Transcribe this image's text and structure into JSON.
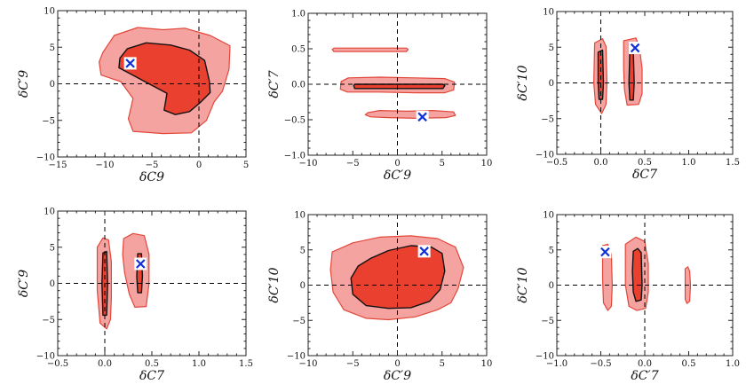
{
  "chart_data": [
    {
      "type": "contour",
      "xlabel": "δC9",
      "ylabel": "δC′9",
      "xlim": [
        -15,
        5
      ],
      "ylim": [
        -10,
        10
      ],
      "xticks": [
        "−15",
        "−10",
        "−5",
        "0",
        "5"
      ],
      "yticks": [
        "−10",
        "−5",
        "0",
        "5",
        "10"
      ],
      "best_fit": [
        -7.3,
        2.8
      ],
      "outer_region": [
        [
          -10.2,
          4.3
        ],
        [
          -9,
          6.6
        ],
        [
          -6.5,
          7.7
        ],
        [
          -3.8,
          7.4
        ],
        [
          -1.5,
          7.6
        ],
        [
          1.2,
          6.6
        ],
        [
          3.3,
          5.2
        ],
        [
          3.2,
          2
        ],
        [
          2.5,
          -1
        ],
        [
          1.6,
          -2.5
        ],
        [
          0.8,
          -5
        ],
        [
          -0.8,
          -6.7
        ],
        [
          -3.8,
          -6.8
        ],
        [
          -7,
          -6.5
        ],
        [
          -7.5,
          -4.8
        ],
        [
          -7,
          -2
        ],
        [
          -8.3,
          0.3
        ],
        [
          -10.4,
          1.2
        ],
        [
          -10.6,
          3
        ]
      ],
      "inner_region": [
        [
          -8.4,
          3.5
        ],
        [
          -7.6,
          4.8
        ],
        [
          -5.6,
          5.6
        ],
        [
          -3,
          5.3
        ],
        [
          -1,
          4.6
        ],
        [
          0.6,
          3.2
        ],
        [
          1.1,
          0.4
        ],
        [
          1.2,
          -1.2
        ],
        [
          0.1,
          -2.6
        ],
        [
          -1,
          -3.8
        ],
        [
          -2.5,
          -4.2
        ],
        [
          -3.7,
          -3.6
        ],
        [
          -3.4,
          -1.3
        ],
        [
          -5.3,
          0
        ],
        [
          -7.2,
          1.3
        ],
        [
          -8.5,
          2.2
        ]
      ]
    },
    {
      "type": "contour",
      "xlabel": "δC′9",
      "ylabel": "δC′7",
      "xlim": [
        -10,
        10
      ],
      "ylim": [
        -1,
        1
      ],
      "xticks": [
        "−10",
        "−5",
        "0",
        "5",
        "10"
      ],
      "yticks": [
        "−1.0",
        "−0.5",
        "0.0",
        "0.5",
        "1.0"
      ],
      "best_fit": [
        2.8,
        -0.46
      ],
      "outer_regions": [
        [
          [
            -7.3,
            0.49
          ],
          [
            -7.1,
            0.51
          ],
          [
            1,
            0.51
          ],
          [
            1.2,
            0.49
          ],
          [
            1,
            0.46
          ],
          [
            -7.1,
            0.46
          ]
        ],
        [
          [
            -6.3,
            0.04
          ],
          [
            -5.5,
            0.09
          ],
          [
            -2,
            0.1
          ],
          [
            2,
            0.09
          ],
          [
            5.3,
            0.08
          ],
          [
            6.4,
            0.03
          ],
          [
            6.3,
            -0.08
          ],
          [
            5.3,
            -0.12
          ],
          [
            2,
            -0.12
          ],
          [
            -2,
            -0.11
          ],
          [
            -5.6,
            -0.11
          ],
          [
            -6.4,
            -0.07
          ]
        ],
        [
          [
            -3.3,
            -0.4
          ],
          [
            -2,
            -0.37
          ],
          [
            1,
            -0.38
          ],
          [
            4,
            -0.37
          ],
          [
            6.3,
            -0.39
          ],
          [
            6.5,
            -0.44
          ],
          [
            5.5,
            -0.47
          ],
          [
            2,
            -0.48
          ],
          [
            -1,
            -0.47
          ],
          [
            -3,
            -0.46
          ],
          [
            -3.6,
            -0.43
          ]
        ]
      ],
      "inner_region": [
        [
          -4.9,
          -0.02
        ],
        [
          -4.8,
          0
        ],
        [
          5.1,
          0
        ],
        [
          5.3,
          -0.02
        ],
        [
          5.1,
          -0.06
        ],
        [
          -4.8,
          -0.06
        ]
      ]
    },
    {
      "type": "contour",
      "xlabel": "δC7",
      "ylabel": "δC′10",
      "xlim": [
        -0.5,
        1.5
      ],
      "ylim": [
        -10,
        10
      ],
      "xticks": [
        "−0.5",
        "0.0",
        "0.5",
        "1.0",
        "1.5"
      ],
      "yticks": [
        "−10",
        "−5",
        "0",
        "5",
        "10"
      ],
      "best_fit": [
        0.39,
        4.9
      ],
      "outer_regions": [
        [
          [
            -0.07,
            5.6
          ],
          [
            0.02,
            6.2
          ],
          [
            0.06,
            5.1
          ],
          [
            0.07,
            0
          ],
          [
            0.06,
            -3
          ],
          [
            0.01,
            -4.3
          ],
          [
            -0.06,
            -3
          ],
          [
            -0.08,
            0
          ]
        ],
        [
          [
            0.26,
            5.9
          ],
          [
            0.4,
            6.3
          ],
          [
            0.44,
            4.9
          ],
          [
            0.47,
            2
          ],
          [
            0.47,
            -1.5
          ],
          [
            0.43,
            -3
          ],
          [
            0.3,
            -3.1
          ],
          [
            0.27,
            -1
          ],
          [
            0.26,
            2
          ]
        ]
      ],
      "inner_regions": [
        [
          [
            -0.03,
            4.3
          ],
          [
            0.02,
            4.6
          ],
          [
            0.03,
            0
          ],
          [
            0.02,
            -2.3
          ],
          [
            -0.02,
            -2.3
          ],
          [
            -0.03,
            0
          ]
        ],
        [
          [
            0.33,
            4.5
          ],
          [
            0.37,
            4.5
          ],
          [
            0.38,
            0
          ],
          [
            0.37,
            -2.4
          ],
          [
            0.33,
            -2.4
          ],
          [
            0.32,
            0
          ]
        ]
      ]
    },
    {
      "type": "contour",
      "xlabel": "δC7",
      "ylabel": "δC′9",
      "xlim": [
        -0.5,
        1.5
      ],
      "ylim": [
        -10,
        10
      ],
      "xticks": [
        "−0.5",
        "0.0",
        "0.5",
        "1.0",
        "1.5"
      ],
      "yticks": [
        "−10",
        "−5",
        "0",
        "5",
        "10"
      ],
      "best_fit": [
        0.38,
        2.7
      ],
      "outer_regions": [
        [
          [
            -0.08,
            5
          ],
          [
            -0.02,
            6.3
          ],
          [
            0.04,
            6
          ],
          [
            0.07,
            3
          ],
          [
            0.07,
            -2
          ],
          [
            0.06,
            -5
          ],
          [
            0.02,
            -6.3
          ],
          [
            -0.05,
            -5.5
          ],
          [
            -0.08,
            -1
          ]
        ],
        [
          [
            0.2,
            6.2
          ],
          [
            0.3,
            6.9
          ],
          [
            0.42,
            6.6
          ],
          [
            0.47,
            4
          ],
          [
            0.47,
            0
          ],
          [
            0.44,
            -3.2
          ],
          [
            0.32,
            -3.3
          ],
          [
            0.26,
            -1.5
          ],
          [
            0.21,
            1.5
          ],
          [
            0.19,
            4
          ]
        ]
      ],
      "inner_regions": [
        [
          [
            -0.02,
            4.2
          ],
          [
            0.02,
            4.4
          ],
          [
            0.03,
            0
          ],
          [
            0.02,
            -4.4
          ],
          [
            -0.02,
            -4.4
          ],
          [
            -0.03,
            0
          ]
        ],
        [
          [
            0.35,
            4.1
          ],
          [
            0.39,
            4.1
          ],
          [
            0.4,
            1
          ],
          [
            0.39,
            -1.3
          ],
          [
            0.35,
            -1.3
          ],
          [
            0.34,
            1
          ]
        ]
      ]
    },
    {
      "type": "contour",
      "xlabel": "δC′9",
      "ylabel": "δC′10",
      "xlim": [
        -10,
        10
      ],
      "ylim": [
        -10,
        10
      ],
      "xticks": [
        "−10",
        "−5",
        "0",
        "5",
        "10"
      ],
      "yticks": [
        "−10",
        "−5",
        "0",
        "5",
        "10"
      ],
      "best_fit": [
        3,
        4.8
      ],
      "outer_region": [
        [
          -7.3,
          4.7
        ],
        [
          -5,
          6
        ],
        [
          -2,
          6.8
        ],
        [
          1.5,
          7
        ],
        [
          4.5,
          6.6
        ],
        [
          6.5,
          5.4
        ],
        [
          7.4,
          2.5
        ],
        [
          6.8,
          -0.5
        ],
        [
          6,
          -2.5
        ],
        [
          4.5,
          -3.5
        ],
        [
          2,
          -4.5
        ],
        [
          -1,
          -4.9
        ],
        [
          -3.5,
          -4.7
        ],
        [
          -6,
          -3.5
        ],
        [
          -7.2,
          -1
        ],
        [
          -7.5,
          2.2
        ]
      ],
      "inner_region": [
        [
          -4.4,
          2.7
        ],
        [
          -3,
          3.8
        ],
        [
          -1,
          4.9
        ],
        [
          1.5,
          5.6
        ],
        [
          3.8,
          5.4
        ],
        [
          5,
          4.5
        ],
        [
          5.3,
          2
        ],
        [
          4.8,
          -0.6
        ],
        [
          3.6,
          -2.3
        ],
        [
          1.5,
          -3.2
        ],
        [
          -1,
          -3.3
        ],
        [
          -3.5,
          -2.9
        ],
        [
          -5,
          -1.3
        ],
        [
          -5.2,
          1
        ]
      ]
    },
    {
      "type": "contour",
      "xlabel": "δC′7",
      "ylabel": "δC′10",
      "xlim": [
        -1,
        1
      ],
      "ylim": [
        -10,
        10
      ],
      "xticks": [
        "−1.0",
        "−0.5",
        "0.0",
        "0.5",
        "1.0"
      ],
      "yticks": [
        "−10",
        "−5",
        "0",
        "5",
        "10"
      ],
      "best_fit": [
        -0.45,
        4.7
      ],
      "outer_regions": [
        [
          [
            -0.48,
            5.6
          ],
          [
            -0.42,
            5.8
          ],
          [
            -0.38,
            4.4
          ],
          [
            -0.37,
            0
          ],
          [
            -0.38,
            -3
          ],
          [
            -0.42,
            -3.6
          ],
          [
            -0.47,
            -2.5
          ],
          [
            -0.48,
            1
          ]
        ],
        [
          [
            -0.22,
            5.8
          ],
          [
            -0.1,
            6.8
          ],
          [
            0,
            6.2
          ],
          [
            0.04,
            3
          ],
          [
            0.04,
            -1
          ],
          [
            0.01,
            -3.3
          ],
          [
            -0.09,
            -3.6
          ],
          [
            -0.18,
            -3
          ],
          [
            -0.22,
            0
          ]
        ],
        [
          [
            0.46,
            2.3
          ],
          [
            0.49,
            2.6
          ],
          [
            0.51,
            2
          ],
          [
            0.52,
            0
          ],
          [
            0.51,
            -2.3
          ],
          [
            0.48,
            -2.6
          ],
          [
            0.46,
            -2
          ]
        ]
      ],
      "inner_region": [
        [
          -0.13,
          4.8
        ],
        [
          -0.08,
          5.2
        ],
        [
          -0.04,
          4.6
        ],
        [
          -0.03,
          0
        ],
        [
          -0.04,
          -2.1
        ],
        [
          -0.1,
          -2.3
        ],
        [
          -0.13,
          -1
        ],
        [
          -0.14,
          2
        ]
      ]
    }
  ]
}
